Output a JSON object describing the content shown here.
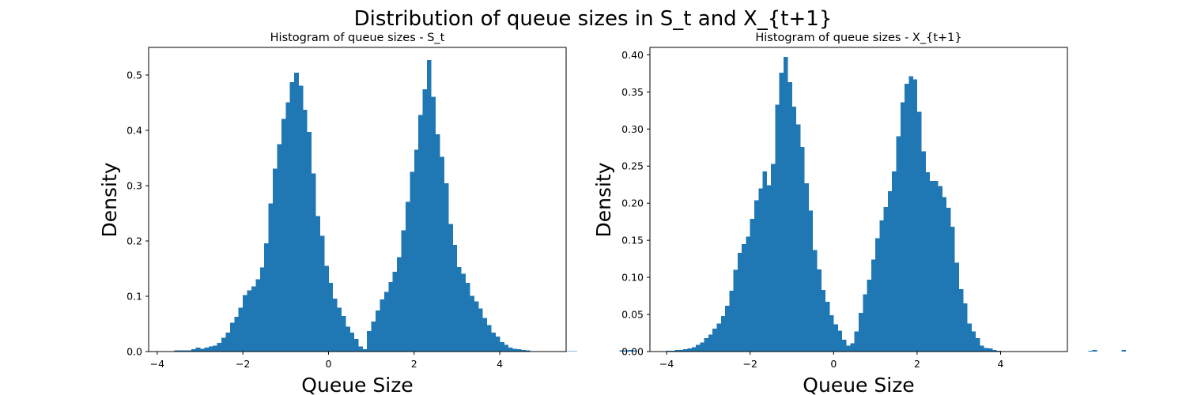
{
  "figure": {
    "suptitle": "Distribution of queue sizes in S_t and X_{t+1}"
  },
  "colors": {
    "bar": "#1f77b4",
    "axis": "#000000",
    "background": "#ffffff"
  },
  "chart_data": [
    {
      "type": "bar",
      "histogram": true,
      "title": "Histogram of queue sizes - S_t",
      "xlabel": "Queue Size",
      "ylabel": "Density",
      "xlim": [
        -4.2,
        5.55
      ],
      "ylim": [
        0,
        0.55
      ],
      "xticks": [
        -4,
        -2,
        0,
        2,
        4
      ],
      "xtick_labels": [
        "−4",
        "−2",
        "0",
        "2",
        "4"
      ],
      "yticks": [
        0.0,
        0.1,
        0.2,
        0.3,
        0.4,
        0.5
      ],
      "ytick_labels": [
        "0.0",
        "0.1",
        "0.2",
        "0.3",
        "0.4",
        "0.5"
      ],
      "grid": false,
      "legend": "none",
      "bin_start": -3.6,
      "bin_width": 0.1,
      "values": [
        0.002,
        0.002,
        0.002,
        0.002,
        0.004,
        0.007,
        0.005,
        0.007,
        0.009,
        0.011,
        0.016,
        0.025,
        0.034,
        0.052,
        0.063,
        0.079,
        0.102,
        0.111,
        0.118,
        0.131,
        0.152,
        0.196,
        0.268,
        0.331,
        0.375,
        0.421,
        0.451,
        0.487,
        0.504,
        0.481,
        0.437,
        0.397,
        0.322,
        0.245,
        0.209,
        0.155,
        0.124,
        0.096,
        0.079,
        0.064,
        0.045,
        0.034,
        0.023,
        0.009,
        0.004,
        0.037,
        0.054,
        0.074,
        0.094,
        0.108,
        0.126,
        0.144,
        0.171,
        0.219,
        0.271,
        0.325,
        0.365,
        0.428,
        0.474,
        0.527,
        0.461,
        0.393,
        0.352,
        0.304,
        0.231,
        0.193,
        0.153,
        0.141,
        0.124,
        0.101,
        0.091,
        0.078,
        0.061,
        0.048,
        0.034,
        0.027,
        0.017,
        0.012,
        0.007,
        0.005,
        0.004,
        0.003,
        0.002,
        0.001,
        0.001,
        0,
        0,
        0,
        0,
        0,
        0.001,
        0.001,
        0.001,
        0.001,
        0,
        0,
        0,
        0,
        0,
        0,
        0,
        0,
        0,
        0,
        0.002,
        0.002,
        0.003,
        0.002
      ]
    },
    {
      "type": "bar",
      "histogram": true,
      "title": "Histogram of queue sizes - X_{t+1}",
      "xlabel": "Queue Size",
      "ylabel": "Density",
      "xlim": [
        -4.4,
        5.6
      ],
      "ylim": [
        0,
        0.41
      ],
      "xticks": [
        -4,
        -2,
        0,
        2,
        4
      ],
      "xtick_labels": [
        "−4",
        "−2",
        "0",
        "2",
        "4"
      ],
      "yticks": [
        0.0,
        0.05,
        0.1,
        0.15,
        0.2,
        0.25,
        0.3,
        0.35,
        0.4
      ],
      "ytick_labels": [
        "0.00",
        "0.05",
        "0.10",
        "0.15",
        "0.20",
        "0.25",
        "0.30",
        "0.35",
        "0.40"
      ],
      "grid": false,
      "legend": "none",
      "bin_start": -4.0,
      "bin_width": 0.1,
      "values": [
        0.001,
        0.001,
        0.002,
        0.002,
        0.003,
        0.004,
        0.006,
        0.009,
        0.012,
        0.018,
        0.023,
        0.031,
        0.038,
        0.048,
        0.062,
        0.082,
        0.11,
        0.133,
        0.145,
        0.155,
        0.179,
        0.204,
        0.22,
        0.243,
        0.224,
        0.253,
        0.333,
        0.376,
        0.397,
        0.363,
        0.33,
        0.306,
        0.276,
        0.227,
        0.19,
        0.137,
        0.111,
        0.083,
        0.067,
        0.049,
        0.037,
        0.028,
        0.016,
        0.008,
        0.011,
        0.027,
        0.052,
        0.077,
        0.097,
        0.124,
        0.153,
        0.177,
        0.195,
        0.216,
        0.243,
        0.29,
        0.336,
        0.361,
        0.371,
        0.367,
        0.323,
        0.27,
        0.242,
        0.23,
        0.23,
        0.223,
        0.208,
        0.194,
        0.168,
        0.12,
        0.084,
        0.065,
        0.038,
        0.027,
        0.018,
        0.008,
        0.005,
        0.004,
        0.002,
        0.001,
        0,
        0,
        0,
        0,
        0,
        0,
        0,
        0,
        0,
        0,
        0,
        0,
        0,
        0,
        0,
        0,
        0,
        0,
        0,
        0,
        0,
        0.001,
        0.002,
        0,
        0,
        0,
        0,
        0,
        0,
        0.002
      ]
    }
  ]
}
